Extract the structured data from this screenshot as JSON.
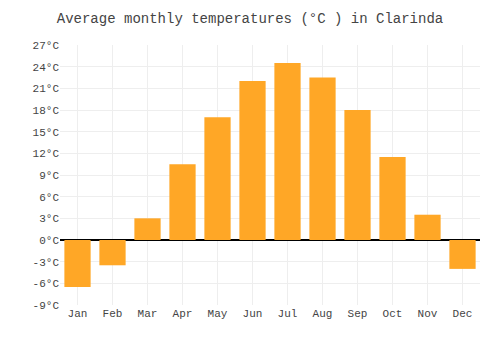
{
  "chart_data": {
    "type": "bar",
    "title": "Average monthly temperatures (°C ) in Clarinda",
    "categories": [
      "Jan",
      "Feb",
      "Mar",
      "Apr",
      "May",
      "Jun",
      "Jul",
      "Aug",
      "Sep",
      "Oct",
      "Nov",
      "Dec"
    ],
    "values": [
      -6.5,
      -3.5,
      3.0,
      10.5,
      17.0,
      22.0,
      24.5,
      22.5,
      18.0,
      11.5,
      3.5,
      -4.0
    ],
    "color": "#FFA726",
    "ylim": [
      -9,
      27
    ],
    "yticks": [
      {
        "value": -9,
        "label": "-9°C"
      },
      {
        "value": -6,
        "label": "-6°C"
      },
      {
        "value": -3,
        "label": "-3°C"
      },
      {
        "value": 0,
        "label": "0°C"
      },
      {
        "value": 3,
        "label": "3°C"
      },
      {
        "value": 6,
        "label": "6°C"
      },
      {
        "value": 9,
        "label": "9°C"
      },
      {
        "value": 12,
        "label": "12°C"
      },
      {
        "value": 15,
        "label": "15°C"
      },
      {
        "value": 18,
        "label": "18°C"
      },
      {
        "value": 21,
        "label": "21°C"
      },
      {
        "value": 24,
        "label": "24°C"
      },
      {
        "value": 27,
        "label": "27°C"
      }
    ],
    "grid": true
  }
}
